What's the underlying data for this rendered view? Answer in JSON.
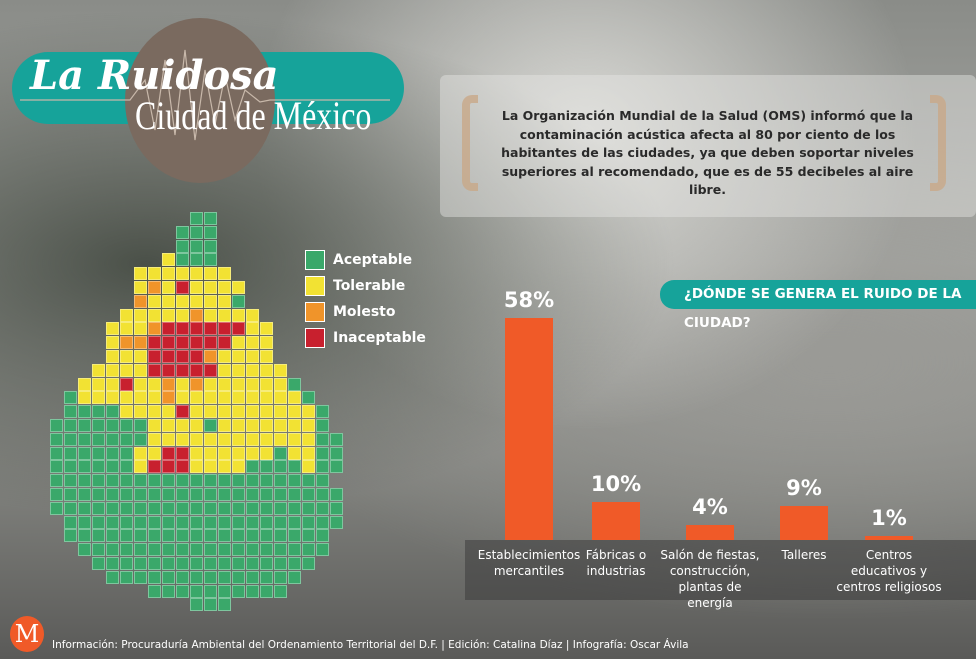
{
  "title": {
    "line1": "La Ruidosa",
    "line2": "Ciudad de México"
  },
  "info_text": "La Organización Mundial de la Salud (OMS) informó que la contaminación acústica afecta al 80 por ciento de los habitantes de las ciudades, ya que deben soportar niveles superiores al recomendado, que es de 55 decibeles al aire libre.",
  "legend": [
    {
      "label": "Aceptable",
      "color": "#3aa86a"
    },
    {
      "label": "Tolerable",
      "color": "#f2e233"
    },
    {
      "label": "Molesto",
      "color": "#f0942a"
    },
    {
      "label": "Inaceptable",
      "color": "#c8202e"
    }
  ],
  "chart_data": {
    "type": "bar",
    "title": "¿DÓNDE SE GENERA EL RUIDO DE LA CIUDAD?",
    "categories": [
      "Establecimientos mercantiles",
      "Fábricas o industrias",
      "Salón de fiestas, construcción, plantas de energía",
      "Talleres",
      "Centros educativos y centros religiosos"
    ],
    "values": [
      58,
      10,
      4,
      9,
      1
    ],
    "value_labels": [
      "58%",
      "10%",
      "4%",
      "9%",
      "1%"
    ],
    "ylim": [
      0,
      60
    ],
    "color": "#f05a28"
  },
  "footer": {
    "logo": "M",
    "credits": "Información: Procuraduría Ambiental del Ordenamiento Territorial del D.F. | Edición: Catalina Díaz | Infografía: Oscar Ávila"
  }
}
